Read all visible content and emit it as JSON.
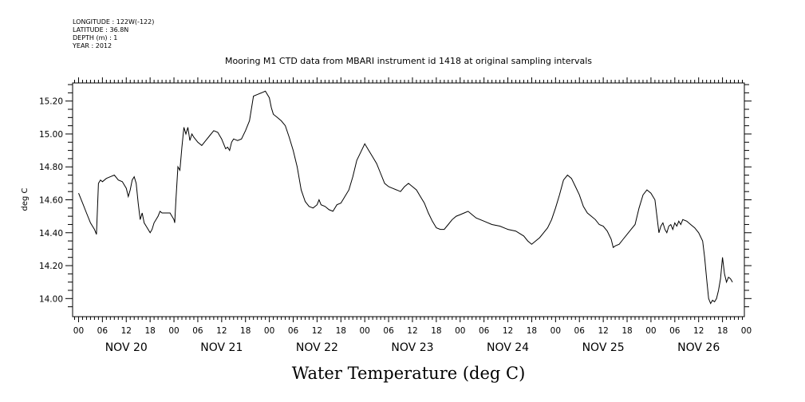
{
  "meta": {
    "longitude": "LONGITUDE : 122W(-122)",
    "latitude": "LATITUDE : 36.8N",
    "depth": "DEPTH (m) : 1",
    "year": "YEAR : 2012"
  },
  "chart_data": {
    "type": "line",
    "title": "Mooring M1 CTD data from MBARI instrument id 1418 at original sampling intervals",
    "xlabel": "Water Temperature (deg C)",
    "ylabel": "deg C",
    "x_unit": "hours from 2012-11-20 00:00",
    "xlim": [
      -1.5,
      167.5
    ],
    "ylim": [
      13.89,
      15.31
    ],
    "y_ticks": [
      "14.00",
      "14.20",
      "14.40",
      "14.60",
      "14.80",
      "15.00",
      "15.20"
    ],
    "hour_ticks": [
      "00",
      "06",
      "12",
      "18",
      "00",
      "06",
      "12",
      "18",
      "00",
      "06",
      "12",
      "18",
      "00",
      "06",
      "12",
      "18",
      "00",
      "06",
      "12",
      "18",
      "00",
      "06",
      "12",
      "18",
      "00",
      "06",
      "12",
      "18",
      "00"
    ],
    "day_labels": [
      "NOV 20",
      "NOV 21",
      "NOV 22",
      "NOV 23",
      "NOV 24",
      "NOV 25",
      "NOV 26"
    ],
    "grid": false,
    "series": [
      {
        "name": "",
        "color": "#000000",
        "points": [
          [
            0,
            14.64
          ],
          [
            1,
            14.58
          ],
          [
            2,
            14.52
          ],
          [
            3,
            14.46
          ],
          [
            4,
            14.42
          ],
          [
            4.5,
            14.39
          ],
          [
            5,
            14.7
          ],
          [
            5.5,
            14.72
          ],
          [
            6,
            14.71
          ],
          [
            7,
            14.73
          ],
          [
            8,
            14.74
          ],
          [
            9,
            14.75
          ],
          [
            10,
            14.72
          ],
          [
            11,
            14.71
          ],
          [
            12,
            14.67
          ],
          [
            12.5,
            14.62
          ],
          [
            13,
            14.66
          ],
          [
            13.5,
            14.72
          ],
          [
            14,
            14.74
          ],
          [
            14.5,
            14.7
          ],
          [
            15,
            14.58
          ],
          [
            15.5,
            14.48
          ],
          [
            16,
            14.52
          ],
          [
            16.5,
            14.46
          ],
          [
            17,
            14.44
          ],
          [
            18,
            14.4
          ],
          [
            18.5,
            14.42
          ],
          [
            19,
            14.46
          ],
          [
            20,
            14.5
          ],
          [
            20.5,
            14.53
          ],
          [
            21,
            14.52
          ],
          [
            22,
            14.52
          ],
          [
            23,
            14.52
          ],
          [
            24,
            14.48
          ],
          [
            24.2,
            14.46
          ],
          [
            24.5,
            14.6
          ],
          [
            25,
            14.8
          ],
          [
            25.5,
            14.78
          ],
          [
            26,
            14.92
          ],
          [
            26.5,
            15.04
          ],
          [
            27,
            15.0
          ],
          [
            27.5,
            15.04
          ],
          [
            28,
            14.96
          ],
          [
            28.5,
            15.0
          ],
          [
            29,
            14.98
          ],
          [
            30,
            14.95
          ],
          [
            31,
            14.93
          ],
          [
            32,
            14.96
          ],
          [
            33,
            14.99
          ],
          [
            34,
            15.02
          ],
          [
            35,
            15.01
          ],
          [
            36,
            14.97
          ],
          [
            36.5,
            14.94
          ],
          [
            37,
            14.91
          ],
          [
            37.5,
            14.92
          ],
          [
            38,
            14.9
          ],
          [
            38.5,
            14.95
          ],
          [
            39,
            14.97
          ],
          [
            40,
            14.96
          ],
          [
            41,
            14.97
          ],
          [
            42,
            15.02
          ],
          [
            43,
            15.08
          ],
          [
            44,
            15.23
          ],
          [
            45,
            15.24
          ],
          [
            46,
            15.25
          ],
          [
            47,
            15.26
          ],
          [
            48,
            15.22
          ],
          [
            48.5,
            15.16
          ],
          [
            49,
            15.12
          ],
          [
            50,
            15.1
          ],
          [
            51,
            15.08
          ],
          [
            52,
            15.05
          ],
          [
            53,
            14.98
          ],
          [
            54,
            14.9
          ],
          [
            55,
            14.8
          ],
          [
            56,
            14.66
          ],
          [
            57,
            14.59
          ],
          [
            58,
            14.56
          ],
          [
            59,
            14.55
          ],
          [
            60,
            14.57
          ],
          [
            60.5,
            14.6
          ],
          [
            61,
            14.57
          ],
          [
            62,
            14.56
          ],
          [
            63,
            14.54
          ],
          [
            64,
            14.53
          ],
          [
            65,
            14.57
          ],
          [
            66,
            14.58
          ],
          [
            67,
            14.62
          ],
          [
            68,
            14.66
          ],
          [
            69,
            14.74
          ],
          [
            70,
            14.84
          ],
          [
            71,
            14.89
          ],
          [
            72,
            14.94
          ],
          [
            73,
            14.9
          ],
          [
            74,
            14.86
          ],
          [
            75,
            14.82
          ],
          [
            76,
            14.76
          ],
          [
            77,
            14.7
          ],
          [
            78,
            14.68
          ],
          [
            79,
            14.67
          ],
          [
            80,
            14.66
          ],
          [
            81,
            14.65
          ],
          [
            82,
            14.68
          ],
          [
            83,
            14.7
          ],
          [
            84,
            14.68
          ],
          [
            85,
            14.66
          ],
          [
            86,
            14.62
          ],
          [
            87,
            14.58
          ],
          [
            88,
            14.52
          ],
          [
            89,
            14.47
          ],
          [
            90,
            14.43
          ],
          [
            91,
            14.42
          ],
          [
            92,
            14.42
          ],
          [
            93,
            14.45
          ],
          [
            94,
            14.48
          ],
          [
            95,
            14.5
          ],
          [
            96,
            14.51
          ],
          [
            97,
            14.52
          ],
          [
            98,
            14.53
          ],
          [
            99,
            14.51
          ],
          [
            100,
            14.49
          ],
          [
            102,
            14.47
          ],
          [
            104,
            14.45
          ],
          [
            106,
            14.44
          ],
          [
            108,
            14.42
          ],
          [
            110,
            14.41
          ],
          [
            112,
            14.38
          ],
          [
            113,
            14.35
          ],
          [
            114,
            14.33
          ],
          [
            115,
            14.35
          ],
          [
            116,
            14.37
          ],
          [
            117,
            14.4
          ],
          [
            118,
            14.43
          ],
          [
            119,
            14.48
          ],
          [
            120,
            14.55
          ],
          [
            121,
            14.63
          ],
          [
            122,
            14.72
          ],
          [
            123,
            14.75
          ],
          [
            124,
            14.73
          ],
          [
            125,
            14.68
          ],
          [
            126,
            14.63
          ],
          [
            127,
            14.56
          ],
          [
            128,
            14.52
          ],
          [
            129,
            14.5
          ],
          [
            130,
            14.48
          ],
          [
            131,
            14.45
          ],
          [
            132,
            14.44
          ],
          [
            133,
            14.41
          ],
          [
            134,
            14.36
          ],
          [
            134.5,
            14.31
          ],
          [
            135,
            14.32
          ],
          [
            136,
            14.33
          ],
          [
            137,
            14.36
          ],
          [
            138,
            14.39
          ],
          [
            139,
            14.42
          ],
          [
            140,
            14.45
          ],
          [
            141,
            14.55
          ],
          [
            142,
            14.63
          ],
          [
            143,
            14.66
          ],
          [
            144,
            14.64
          ],
          [
            145,
            14.6
          ],
          [
            145.5,
            14.5
          ],
          [
            146,
            14.4
          ],
          [
            146.5,
            14.44
          ],
          [
            147,
            14.46
          ],
          [
            147.5,
            14.42
          ],
          [
            148,
            14.4
          ],
          [
            148.5,
            14.44
          ],
          [
            149,
            14.45
          ],
          [
            149.5,
            14.42
          ],
          [
            150,
            14.46
          ],
          [
            150.5,
            14.44
          ],
          [
            151,
            14.47
          ],
          [
            151.5,
            14.45
          ],
          [
            152,
            14.48
          ],
          [
            153,
            14.47
          ],
          [
            154,
            14.45
          ],
          [
            155,
            14.43
          ],
          [
            156,
            14.4
          ],
          [
            157,
            14.35
          ],
          [
            157.5,
            14.25
          ],
          [
            158,
            14.12
          ],
          [
            158.5,
            14.0
          ],
          [
            159,
            13.97
          ],
          [
            159.5,
            13.99
          ],
          [
            160,
            13.98
          ],
          [
            160.5,
            14.0
          ],
          [
            161,
            14.05
          ],
          [
            161.5,
            14.12
          ],
          [
            162,
            14.25
          ],
          [
            162.5,
            14.15
          ],
          [
            163,
            14.1
          ],
          [
            163.5,
            14.13
          ],
          [
            164,
            14.12
          ],
          [
            164.5,
            14.1
          ]
        ]
      }
    ]
  }
}
